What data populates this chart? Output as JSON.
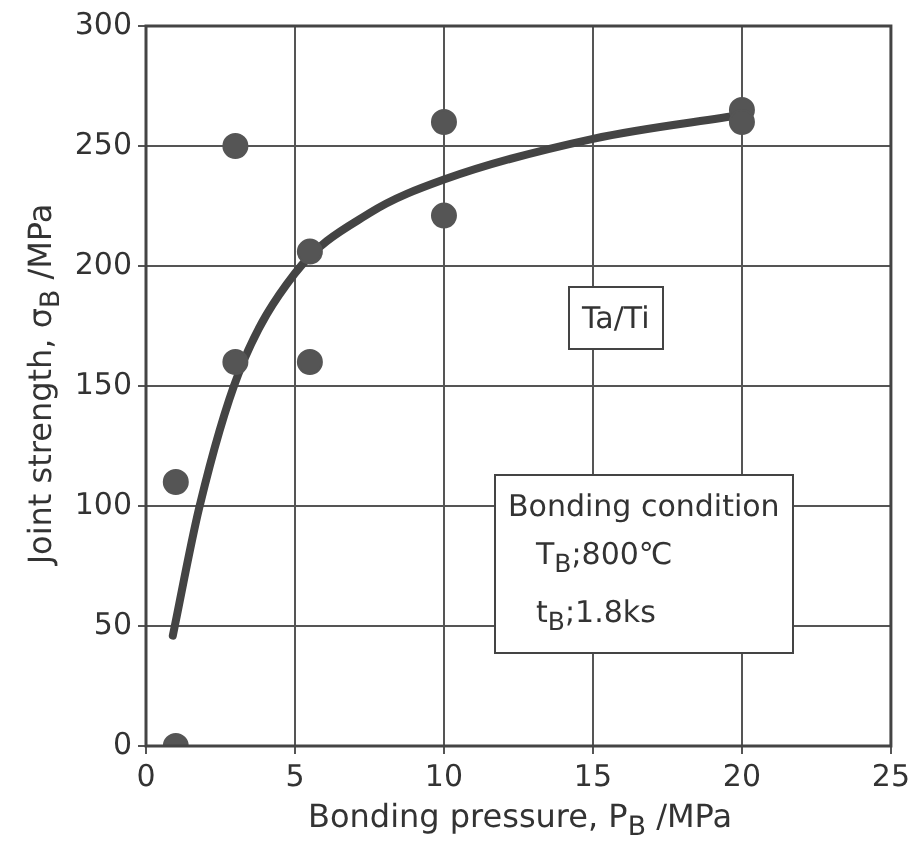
{
  "chart_data": {
    "type": "scatter",
    "xlabel": "Bonding pressure, P$_{B}$ /MPa",
    "ylabel": "Joint strength, σ$_{B}$ /MPa",
    "xlim": [
      0,
      25
    ],
    "xticks": [
      0,
      5,
      10,
      15,
      20,
      25
    ],
    "ylim": [
      0,
      300
    ],
    "yticks": [
      0,
      50,
      100,
      150,
      200,
      250,
      300
    ],
    "grid": true,
    "legend": false,
    "annotations": [
      "Ta/Ti",
      "Bonding condition",
      "T$_{B}$;800℃",
      "t$_{B}$;1.8ks"
    ],
    "series": [
      {
        "color": "#555555",
        "marker": "circle",
        "x": [
          1,
          1,
          3,
          3,
          5.5,
          5.5,
          10,
          10,
          20,
          20
        ],
        "values": [
          110,
          0,
          250,
          160,
          206,
          160,
          260,
          221,
          265,
          260
        ]
      },
      {
        "type": "line",
        "color": "#444444",
        "marker": "none",
        "x": [
          0.9,
          1.8,
          3.1,
          5,
          7.5,
          10,
          15,
          20
        ],
        "values": [
          46,
          100,
          155,
          197,
          222,
          236,
          253,
          263
        ]
      }
    ]
  }
}
